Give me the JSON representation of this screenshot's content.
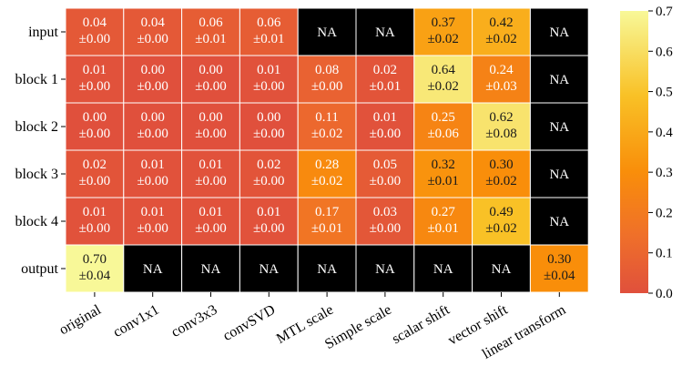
{
  "chart_data": {
    "type": "heatmap",
    "rows": [
      "input",
      "block 1",
      "block 2",
      "block 3",
      "block 4",
      "output"
    ],
    "columns": [
      "original",
      "conv1x1",
      "conv3x3",
      "convSVD",
      "MTL scale",
      "Simple scale",
      "scalar shift",
      "vector shift",
      "linear transform"
    ],
    "missing_label": "NA",
    "missing_color": "#000000",
    "colormap": "inferno-like: red-orange (low) to pale yellow (high)",
    "colorbar": {
      "min": 0.0,
      "max": 0.7,
      "ticks": [
        "0.0",
        "0.1",
        "0.2",
        "0.3",
        "0.4",
        "0.5",
        "0.6",
        "0.7"
      ]
    },
    "cells": [
      [
        {
          "mean": "0.04",
          "std": "±0.00"
        },
        {
          "mean": "0.04",
          "std": "±0.00"
        },
        {
          "mean": "0.06",
          "std": "±0.01"
        },
        {
          "mean": "0.06",
          "std": "±0.01"
        },
        null,
        null,
        {
          "mean": "0.37",
          "std": "±0.02"
        },
        {
          "mean": "0.42",
          "std": "±0.02"
        },
        null
      ],
      [
        {
          "mean": "0.01",
          "std": "±0.00"
        },
        {
          "mean": "0.00",
          "std": "±0.00"
        },
        {
          "mean": "0.00",
          "std": "±0.00"
        },
        {
          "mean": "0.01",
          "std": "±0.00"
        },
        {
          "mean": "0.08",
          "std": "±0.00"
        },
        {
          "mean": "0.02",
          "std": "±0.01"
        },
        {
          "mean": "0.64",
          "std": "±0.02"
        },
        {
          "mean": "0.24",
          "std": "±0.03"
        },
        null
      ],
      [
        {
          "mean": "0.00",
          "std": "±0.00"
        },
        {
          "mean": "0.00",
          "std": "±0.00"
        },
        {
          "mean": "0.00",
          "std": "±0.00"
        },
        {
          "mean": "0.00",
          "std": "±0.00"
        },
        {
          "mean": "0.11",
          "std": "±0.02"
        },
        {
          "mean": "0.01",
          "std": "±0.00"
        },
        {
          "mean": "0.25",
          "std": "±0.06"
        },
        {
          "mean": "0.62",
          "std": "±0.08"
        },
        null
      ],
      [
        {
          "mean": "0.02",
          "std": "±0.00"
        },
        {
          "mean": "0.01",
          "std": "±0.00"
        },
        {
          "mean": "0.01",
          "std": "±0.00"
        },
        {
          "mean": "0.02",
          "std": "±0.00"
        },
        {
          "mean": "0.28",
          "std": "±0.02"
        },
        {
          "mean": "0.05",
          "std": "±0.00"
        },
        {
          "mean": "0.32",
          "std": "±0.01"
        },
        {
          "mean": "0.30",
          "std": "±0.02"
        },
        null
      ],
      [
        {
          "mean": "0.01",
          "std": "±0.00"
        },
        {
          "mean": "0.01",
          "std": "±0.00"
        },
        {
          "mean": "0.01",
          "std": "±0.00"
        },
        {
          "mean": "0.01",
          "std": "±0.00"
        },
        {
          "mean": "0.17",
          "std": "±0.01"
        },
        {
          "mean": "0.03",
          "std": "±0.00"
        },
        {
          "mean": "0.27",
          "std": "±0.01"
        },
        {
          "mean": "0.49",
          "std": "±0.02"
        },
        null
      ],
      [
        {
          "mean": "0.70",
          "std": "±0.04"
        },
        null,
        null,
        null,
        null,
        null,
        null,
        null,
        {
          "mean": "0.30",
          "std": "±0.04"
        }
      ]
    ]
  }
}
